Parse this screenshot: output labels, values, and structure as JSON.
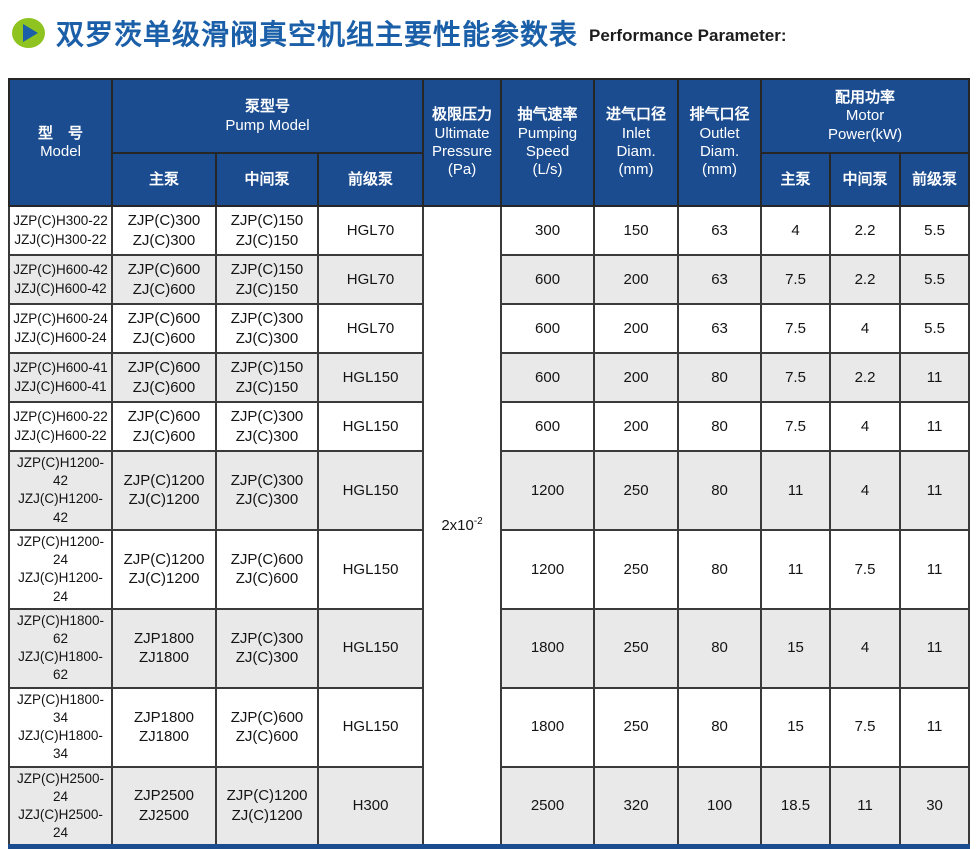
{
  "page": {
    "title_cn": "双罗茨单级滑阀真空机组主要性能参数表",
    "title_en": "Performance Parameter:"
  },
  "colors": {
    "header_blue": "#1b4c90",
    "title_blue": "#1a5fa8",
    "bullet_green": "#8fc31f",
    "stripe_gray": "#e9e9e9",
    "border_dark": "#3a3a3a"
  },
  "table": {
    "headers": {
      "model": {
        "cn": "型　号",
        "en": "Model"
      },
      "pump_group": {
        "cn": "泵型号",
        "en": "Pump Model"
      },
      "main_pump": {
        "cn": "主泵"
      },
      "middle_pump": {
        "cn": "中间泵"
      },
      "fore_pump": {
        "cn": "前级泵"
      },
      "pressure": {
        "cn": "极限压力",
        "en": "Ultimate\nPressure\n(Pa)"
      },
      "speed": {
        "cn": "抽气速率",
        "en": "Pumping\nSpeed\n(L/s)"
      },
      "inlet": {
        "cn": "进气口径",
        "en": "Inlet\nDiam.\n(mm)"
      },
      "outlet": {
        "cn": "排气口径",
        "en": "Outlet\nDiam.\n(mm)"
      },
      "motor_group": {
        "cn": "配用功率",
        "en": "Motor\nPower(kW)"
      },
      "power_main": {
        "cn": "主泵"
      },
      "power_middle": {
        "cn": "中间泵"
      },
      "power_fore": {
        "cn": "前级泵"
      }
    },
    "pressure_value": {
      "base": "2x10",
      "exp": "-2"
    },
    "rows": [
      {
        "model": [
          "JZP(C)H300-22",
          "JZJ(C)H300-22"
        ],
        "main": [
          "ZJP(C)300",
          "ZJ(C)300"
        ],
        "middle": [
          "ZJP(C)150",
          "ZJ(C)150"
        ],
        "fore": "HGL70",
        "speed": "300",
        "inlet": "150",
        "outlet": "63",
        "p_main": "4",
        "p_middle": "2.2",
        "p_fore": "5.5"
      },
      {
        "model": [
          "JZP(C)H600-42",
          "JZJ(C)H600-42"
        ],
        "main": [
          "ZJP(C)600",
          "ZJ(C)600"
        ],
        "middle": [
          "ZJP(C)150",
          "ZJ(C)150"
        ],
        "fore": "HGL70",
        "speed": "600",
        "inlet": "200",
        "outlet": "63",
        "p_main": "7.5",
        "p_middle": "2.2",
        "p_fore": "5.5"
      },
      {
        "model": [
          "JZP(C)H600-24",
          "JZJ(C)H600-24"
        ],
        "main": [
          "ZJP(C)600",
          "ZJ(C)600"
        ],
        "middle": [
          "ZJP(C)300",
          "ZJ(C)300"
        ],
        "fore": "HGL70",
        "speed": "600",
        "inlet": "200",
        "outlet": "63",
        "p_main": "7.5",
        "p_middle": "4",
        "p_fore": "5.5"
      },
      {
        "model": [
          "JZP(C)H600-41",
          "JZJ(C)H600-41"
        ],
        "main": [
          "ZJP(C)600",
          "ZJ(C)600"
        ],
        "middle": [
          "ZJP(C)150",
          "ZJ(C)150"
        ],
        "fore": "HGL150",
        "speed": "600",
        "inlet": "200",
        "outlet": "80",
        "p_main": "7.5",
        "p_middle": "2.2",
        "p_fore": "11"
      },
      {
        "model": [
          "JZP(C)H600-22",
          "JZJ(C)H600-22"
        ],
        "main": [
          "ZJP(C)600",
          "ZJ(C)600"
        ],
        "middle": [
          "ZJP(C)300",
          "ZJ(C)300"
        ],
        "fore": "HGL150",
        "speed": "600",
        "inlet": "200",
        "outlet": "80",
        "p_main": "7.5",
        "p_middle": "4",
        "p_fore": "11"
      },
      {
        "model": [
          "JZP(C)H1200-42",
          "JZJ(C)H1200-42"
        ],
        "main": [
          "ZJP(C)1200",
          "ZJ(C)1200"
        ],
        "middle": [
          "ZJP(C)300",
          "ZJ(C)300"
        ],
        "fore": "HGL150",
        "speed": "1200",
        "inlet": "250",
        "outlet": "80",
        "p_main": "11",
        "p_middle": "4",
        "p_fore": "11"
      },
      {
        "model": [
          "JZP(C)H1200-24",
          "JZJ(C)H1200-24"
        ],
        "main": [
          "ZJP(C)1200",
          "ZJ(C)1200"
        ],
        "middle": [
          "ZJP(C)600",
          "ZJ(C)600"
        ],
        "fore": "HGL150",
        "speed": "1200",
        "inlet": "250",
        "outlet": "80",
        "p_main": "11",
        "p_middle": "7.5",
        "p_fore": "11"
      },
      {
        "model": [
          "JZP(C)H1800-62",
          "JZJ(C)H1800-62"
        ],
        "main": [
          "ZJP1800",
          "ZJ1800"
        ],
        "middle": [
          "ZJP(C)300",
          "ZJ(C)300"
        ],
        "fore": "HGL150",
        "speed": "1800",
        "inlet": "250",
        "outlet": "80",
        "p_main": "15",
        "p_middle": "4",
        "p_fore": "11"
      },
      {
        "model": [
          "JZP(C)H1800-34",
          "JZJ(C)H1800-34"
        ],
        "main": [
          "ZJP1800",
          "ZJ1800"
        ],
        "middle": [
          "ZJP(C)600",
          "ZJ(C)600"
        ],
        "fore": "HGL150",
        "speed": "1800",
        "inlet": "250",
        "outlet": "80",
        "p_main": "15",
        "p_middle": "7.5",
        "p_fore": "11"
      },
      {
        "model": [
          "JZP(C)H2500-24",
          "JZJ(C)H2500-24"
        ],
        "main": [
          "ZJP2500",
          "ZJ2500"
        ],
        "middle": [
          "ZJP(C)1200",
          "ZJ(C)1200"
        ],
        "fore": "H300",
        "speed": "2500",
        "inlet": "320",
        "outlet": "100",
        "p_main": "18.5",
        "p_middle": "11",
        "p_fore": "30"
      }
    ]
  }
}
